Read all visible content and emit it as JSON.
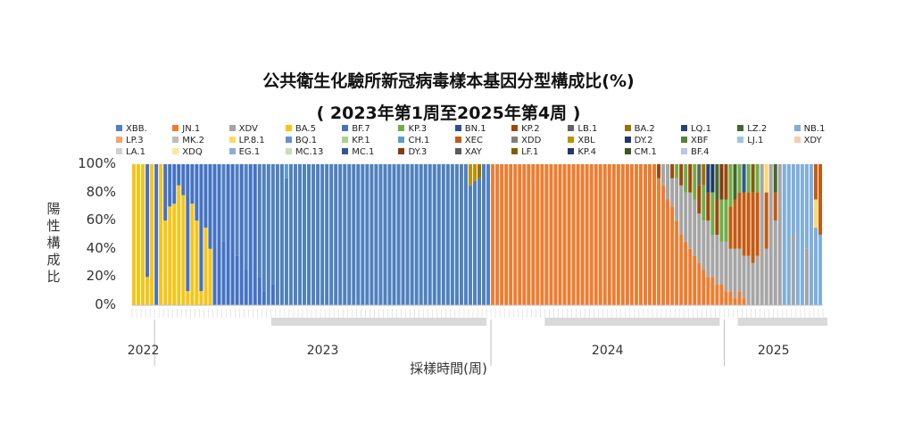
{
  "chart_data": {
    "type": "bar",
    "stacked": true,
    "normalized": true,
    "title": "公共衛生化驗所新冠病毒樣本基因分型構成比(%)",
    "subtitle": "( 2023年第1周至2025年第4周 )",
    "xlabel": "採樣時間(周)",
    "ylabel": "陽性構成比",
    "ylim": [
      0,
      100
    ],
    "yticks": [
      "0%",
      "20%",
      "40%",
      "60%",
      "80%",
      "100%"
    ],
    "year_labels": [
      "2022",
      "2023",
      "2024",
      "2025"
    ],
    "legend_position": "top",
    "series": [
      {
        "name": "XBB.",
        "color": "#4f81bd"
      },
      {
        "name": "JN.1",
        "color": "#ed7d31"
      },
      {
        "name": "XDV",
        "color": "#a5a5a5"
      },
      {
        "name": "BA.5",
        "color": "#f5c518"
      },
      {
        "name": "BF.7",
        "color": "#4472c4"
      },
      {
        "name": "KP.3",
        "color": "#70ad47"
      },
      {
        "name": "BN.1",
        "color": "#2e4f8f"
      },
      {
        "name": "KP.2",
        "color": "#9e480e"
      },
      {
        "name": "LB.1",
        "color": "#636363"
      },
      {
        "name": "BA.2",
        "color": "#997300"
      },
      {
        "name": "LQ.1",
        "color": "#264478"
      },
      {
        "name": "LZ.2",
        "color": "#43682b"
      },
      {
        "name": "NB.1",
        "color": "#7faedc"
      },
      {
        "name": "LP.3",
        "color": "#f4a36d"
      },
      {
        "name": "MK.2",
        "color": "#bdbdbd"
      },
      {
        "name": "LP.8.1",
        "color": "#ffd966"
      },
      {
        "name": "BQ.1",
        "color": "#698ed0"
      },
      {
        "name": "KP.1",
        "color": "#a9d18e"
      },
      {
        "name": "CH.1",
        "color": "#5b9bd5"
      },
      {
        "name": "XEC",
        "color": "#c55a11"
      },
      {
        "name": "XDD",
        "color": "#7f7f7f"
      },
      {
        "name": "XBL",
        "color": "#bf9000"
      },
      {
        "name": "DY.2",
        "color": "#1f3864"
      },
      {
        "name": "XBF",
        "color": "#548235"
      },
      {
        "name": "LJ.1",
        "color": "#9dc3e6"
      },
      {
        "name": "XDY",
        "color": "#f8cbad"
      },
      {
        "name": "LA.1",
        "color": "#d0d0d0"
      },
      {
        "name": "XDQ",
        "color": "#ffe699"
      },
      {
        "name": "EG.1",
        "color": "#8faadc"
      },
      {
        "name": "MC.13",
        "color": "#c5e0b4"
      },
      {
        "name": "MC.1",
        "color": "#2f5597"
      },
      {
        "name": "DY.3",
        "color": "#843c0c"
      },
      {
        "name": "XAY",
        "color": "#595959"
      },
      {
        "name": "LF.1",
        "color": "#7f6000"
      },
      {
        "name": "KP.4",
        "color": "#203864"
      },
      {
        "name": "CM.1",
        "color": "#385723"
      },
      {
        "name": "BF.4",
        "color": "#b4c7e7"
      }
    ],
    "bars": [
      {
        "BA.5": 100
      },
      {
        "BA.5": 100
      },
      {
        "BA.5": 100
      },
      {
        "BA.5": 20,
        "BF.7": 80
      },
      {
        "BA.5": 100
      },
      {
        "BF.7": 100
      },
      {
        "BA.5": 100
      },
      {
        "BA.5": 60,
        "BF.7": 40
      },
      {
        "BA.5": 70,
        "BF.7": 30
      },
      {
        "BA.5": 72,
        "BF.7": 28
      },
      {
        "BA.5": 85,
        "BF.7": 15
      },
      {
        "BA.5": 78,
        "BF.7": 22
      },
      {
        "BA.5": 10,
        "BF.7": 90
      },
      {
        "BA.5": 72,
        "BF.7": 28
      },
      {
        "BA.5": 60,
        "BF.7": 40
      },
      {
        "BA.5": 10,
        "BF.7": 90
      },
      {
        "BA.5": 55,
        "BF.7": 45
      },
      {
        "BA.5": 40,
        "BF.7": 60
      },
      {
        "BF.7": 100
      },
      {
        "BF.7": 100
      },
      {
        "BF.7": 45,
        "XBB.": 55
      },
      {
        "BF.7": 100
      },
      {
        "BF.7": 100
      },
      {
        "BF.7": 35,
        "XBB.": 65
      },
      {
        "BF.7": 100
      },
      {
        "BF.7": 25,
        "XBB.": 75
      },
      {
        "BF.7": 100
      },
      {
        "BF.7": 100
      },
      {
        "BF.7": 20,
        "XBB.": 80
      },
      {
        "BF.7": 10,
        "XBB.": 90
      },
      {
        "XBB.": 100
      },
      {
        "BF.7": 15,
        "XBB.": 85
      },
      {
        "XBB.": 100
      },
      {
        "XBB.": 100
      },
      {
        "XBB.": 90,
        "CH.1": 10
      },
      {
        "XBB.": 100
      },
      {
        "XBB.": 100
      },
      {
        "XBB.": 100
      },
      {
        "XBB.": 100
      },
      {
        "XBB.": 100
      },
      {
        "XBB.": 100
      },
      {
        "XBB.": 100
      },
      {
        "XBB.": 100
      },
      {
        "XBB.": 100
      },
      {
        "XBB.": 100
      },
      {
        "XBB.": 100
      },
      {
        "XBB.": 100
      },
      {
        "XBB.": 100
      },
      {
        "XBB.": 100
      },
      {
        "XBB.": 100
      },
      {
        "XBB.": 100
      },
      {
        "XBB.": 100
      },
      {
        "XBB.": 100
      },
      {
        "XBB.": 100
      },
      {
        "XBB.": 100
      },
      {
        "XBB.": 100
      },
      {
        "XBB.": 100
      },
      {
        "XBB.": 100
      },
      {
        "XBB.": 100
      },
      {
        "XBB.": 100
      },
      {
        "XBB.": 100
      },
      {
        "XBB.": 100
      },
      {
        "XBB.": 100
      },
      {
        "XBB.": 100
      },
      {
        "XBB.": 100
      },
      {
        "XBB.": 100
      },
      {
        "XBB.": 100
      },
      {
        "XBB.": 100
      },
      {
        "XBB.": 100
      },
      {
        "XBB.": 100
      },
      {
        "XBB.": 100
      },
      {
        "XBB.": 100
      },
      {
        "XBB.": 100
      },
      {
        "XBB.": 100
      },
      {
        "XBB.": 100
      },
      {
        "XBB.": 85,
        "XBL": 15
      },
      {
        "XBB.": 88,
        "XBL": 12
      },
      {
        "XBB.": 90,
        "BA.2": 10
      },
      {
        "XBB.": 100
      },
      {
        "XBB.": 100
      },
      {
        "JN.1": 100
      },
      {
        "JN.1": 100
      },
      {
        "JN.1": 100
      },
      {
        "JN.1": 100
      },
      {
        "JN.1": 100
      },
      {
        "JN.1": 100
      },
      {
        "JN.1": 100
      },
      {
        "JN.1": 100
      },
      {
        "JN.1": 100
      },
      {
        "JN.1": 100
      },
      {
        "JN.1": 100
      },
      {
        "JN.1": 100
      },
      {
        "JN.1": 100
      },
      {
        "JN.1": 100
      },
      {
        "JN.1": 100
      },
      {
        "JN.1": 100
      },
      {
        "JN.1": 100
      },
      {
        "JN.1": 100
      },
      {
        "JN.1": 100
      },
      {
        "JN.1": 100
      },
      {
        "JN.1": 100
      },
      {
        "JN.1": 100
      },
      {
        "JN.1": 100
      },
      {
        "JN.1": 100
      },
      {
        "JN.1": 100
      },
      {
        "JN.1": 100
      },
      {
        "JN.1": 100
      },
      {
        "JN.1": 100
      },
      {
        "JN.1": 100
      },
      {
        "JN.1": 100
      },
      {
        "JN.1": 100
      },
      {
        "JN.1": 100
      },
      {
        "JN.1": 100
      },
      {
        "JN.1": 100
      },
      {
        "JN.1": 100
      },
      {
        "JN.1": 100
      },
      {
        "JN.1": 100
      },
      {
        "JN.1": 90,
        "KP.2": 10
      },
      {
        "JN.1": 85,
        "XDV": 15
      },
      {
        "JN.1": 75,
        "XDV": 25
      },
      {
        "JN.1": 70,
        "XDV": 20,
        "KP.2": 10
      },
      {
        "JN.1": 60,
        "XDV": 30,
        "KP.3": 10
      },
      {
        "JN.1": 50,
        "XDV": 35,
        "KP.2": 15
      },
      {
        "JN.1": 45,
        "XDV": 35,
        "KP.3": 20
      },
      {
        "JN.1": 40,
        "XDV": 40,
        "KP.2": 20
      },
      {
        "JN.1": 35,
        "XDV": 40,
        "KP.3": 25
      },
      {
        "JN.1": 30,
        "XDV": 35,
        "KP.2": 20,
        "LB.1": 15
      },
      {
        "JN.1": 25,
        "XDV": 35,
        "KP.3": 25,
        "BA.2": 15
      },
      {
        "JN.1": 20,
        "XDV": 40,
        "KP.2": 20,
        "LQ.1": 20
      },
      {
        "JN.1": 20,
        "XDV": 30,
        "KP.3": 30,
        "DY.2": 20
      },
      {
        "JN.1": 15,
        "XDV": 35,
        "KP.2": 25,
        "LZ.2": 25
      },
      {
        "JN.1": 15,
        "XDV": 30,
        "KP.3": 30,
        "DY.3": 25
      },
      {
        "JN.1": 10,
        "XDV": 35,
        "KP.3": 30,
        "KP.2": 25
      },
      {
        "JN.1": 10,
        "XDV": 30,
        "XEC": 30,
        "KP.3": 30
      },
      {
        "JN.1": 5,
        "XDV": 35,
        "XEC": 35,
        "LZ.2": 25
      },
      {
        "JN.1": 10,
        "XDV": 30,
        "XEC": 40,
        "KP.3": 20
      },
      {
        "JN.1": 5,
        "XDV": 30,
        "XEC": 45,
        "MC.1": 20
      },
      {
        "XDV": 35,
        "XEC": 45,
        "KP.3": 20
      },
      {
        "XDV": 30,
        "XEC": 50,
        "LF.1": 20
      },
      {
        "XDV": 35,
        "XEC": 45,
        "KP.3": 20
      },
      {
        "XDV": 100
      },
      {
        "XDV": 40,
        "XEC": 40,
        "LP.8.1": 20
      },
      {
        "XDV": 100
      },
      {
        "XDV": 60,
        "XEC": 20,
        "LZ.2": 20
      },
      {
        "XDV": 100
      },
      {
        "NB.1": 100
      },
      {
        "NB.1": 100
      },
      {
        "XDV": 50,
        "NB.1": 50
      },
      {
        "NB.1": 100
      },
      {
        "NB.1": 100
      },
      {
        "XDV": 40,
        "NB.1": 60
      },
      {
        "NB.1": 100
      },
      {
        "NB.1": 55,
        "LP.8.1": 20,
        "XEC": 25
      },
      {
        "NB.1": 50,
        "XEC": 50
      }
    ]
  }
}
